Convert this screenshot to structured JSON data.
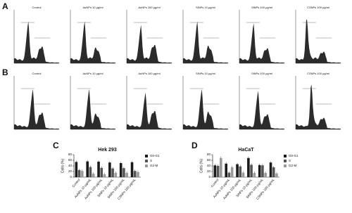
{
  "figure": {
    "panel_a": {
      "label": "A",
      "titles": [
        "Control",
        "AuNPs 10 μg/ml",
        "AuNPs 100 μg/ml",
        "SiNPs 10 μg/ml",
        "SiNPs 100 μg/ml",
        "CSNPs 100 μg/ml"
      ]
    },
    "panel_b": {
      "label": "B",
      "titles": [
        "Control",
        "AuNPs 10 μg/ml",
        "AuNPs 100 μg/ml",
        "SiNPs 10 μg/ml",
        "SiNPs 100 μg/ml",
        "CSNPs 100 μg/ml"
      ]
    }
  },
  "chart_data": [
    {
      "type": "bar",
      "panel_label": "C",
      "title": "Hek 293",
      "y_label": "Cells (%)",
      "categories": [
        "Control",
        "AuNPs 10 μg/mL",
        "AuNPs 100 μg/mL",
        "SiNPs 10 μg/mL",
        "SiNPs 100 μg/mL",
        "CSNPs 100 μg/mL"
      ],
      "series": [
        {
          "name": "G0-G1",
          "color": "#1a1a1a",
          "values": [
            54,
            56,
            55,
            52,
            50,
            53
          ]
        },
        {
          "name": "S",
          "color": "#555555",
          "values": [
            25,
            36,
            33,
            31,
            32,
            22
          ]
        },
        {
          "name": "G2-M",
          "color": "#9a9a9a",
          "values": [
            22,
            12,
            10,
            15,
            15,
            18
          ]
        }
      ],
      "ylim": [
        0,
        80
      ],
      "yticks": [
        0,
        20,
        40,
        60,
        80
      ]
    },
    {
      "type": "bar",
      "panel_label": "D",
      "title": "HaCaT",
      "y_label": "Cells (%)",
      "categories": [
        "Control",
        "AuNPs 10 μg/mL",
        "AuNPs 100 μg/mL",
        "SiNPs 10 μg/mL",
        "SiNPs 100 μg/mL",
        "CSNPs 100 μg/mL"
      ],
      "series": [
        {
          "name": "G0-G1",
          "color": "#1a1a1a",
          "values": [
            42,
            48,
            46,
            68,
            43,
            52
          ]
        },
        {
          "name": "S",
          "color": "#555555",
          "values": [
            40,
            16,
            38,
            44,
            42,
            35
          ]
        },
        {
          "name": "G2-M",
          "color": "#9a9a9a",
          "values": [
            68,
            35,
            16,
            15,
            15,
            13
          ]
        }
      ],
      "ylim": [
        0,
        80
      ],
      "yticks": [
        0,
        20,
        40,
        60,
        80
      ]
    }
  ]
}
